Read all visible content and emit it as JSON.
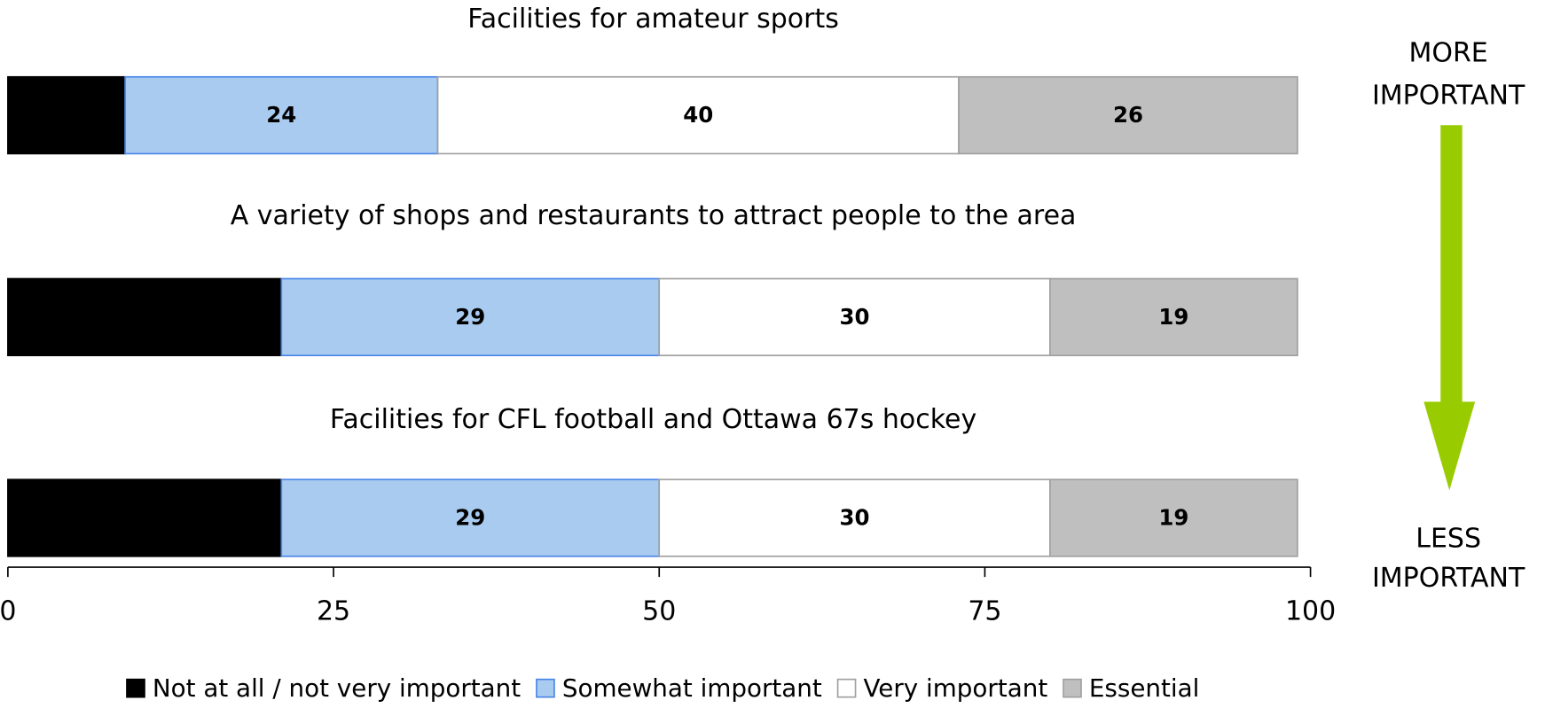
{
  "chart_data": {
    "type": "stacked-bar-horizontal",
    "categories": [
      "Facilities for amateur sports",
      "A variety of shops and restaurants to attract people to the area",
      "Facilities for CFL football and Ottawa 67s hockey"
    ],
    "series": [
      {
        "name": "Not at all / not very important",
        "color": "#000000",
        "values": [
          9,
          21,
          21
        ]
      },
      {
        "name": "Somewhat important",
        "color": "#a9cbf0",
        "values": [
          24,
          29,
          29
        ]
      },
      {
        "name": "Very important",
        "color": "#ffffff",
        "values": [
          40,
          30,
          30
        ]
      },
      {
        "name": "Essential",
        "color": "#bfbfbf",
        "values": [
          26,
          19,
          19
        ]
      }
    ],
    "xlim": [
      0,
      100
    ],
    "xticks": [
      0,
      25,
      50,
      75,
      100
    ],
    "annotations": [
      [
        "MORE",
        "IMPORTANT"
      ],
      [
        "LESS",
        "IMPORTANT"
      ]
    ],
    "legend": "bottom"
  }
}
